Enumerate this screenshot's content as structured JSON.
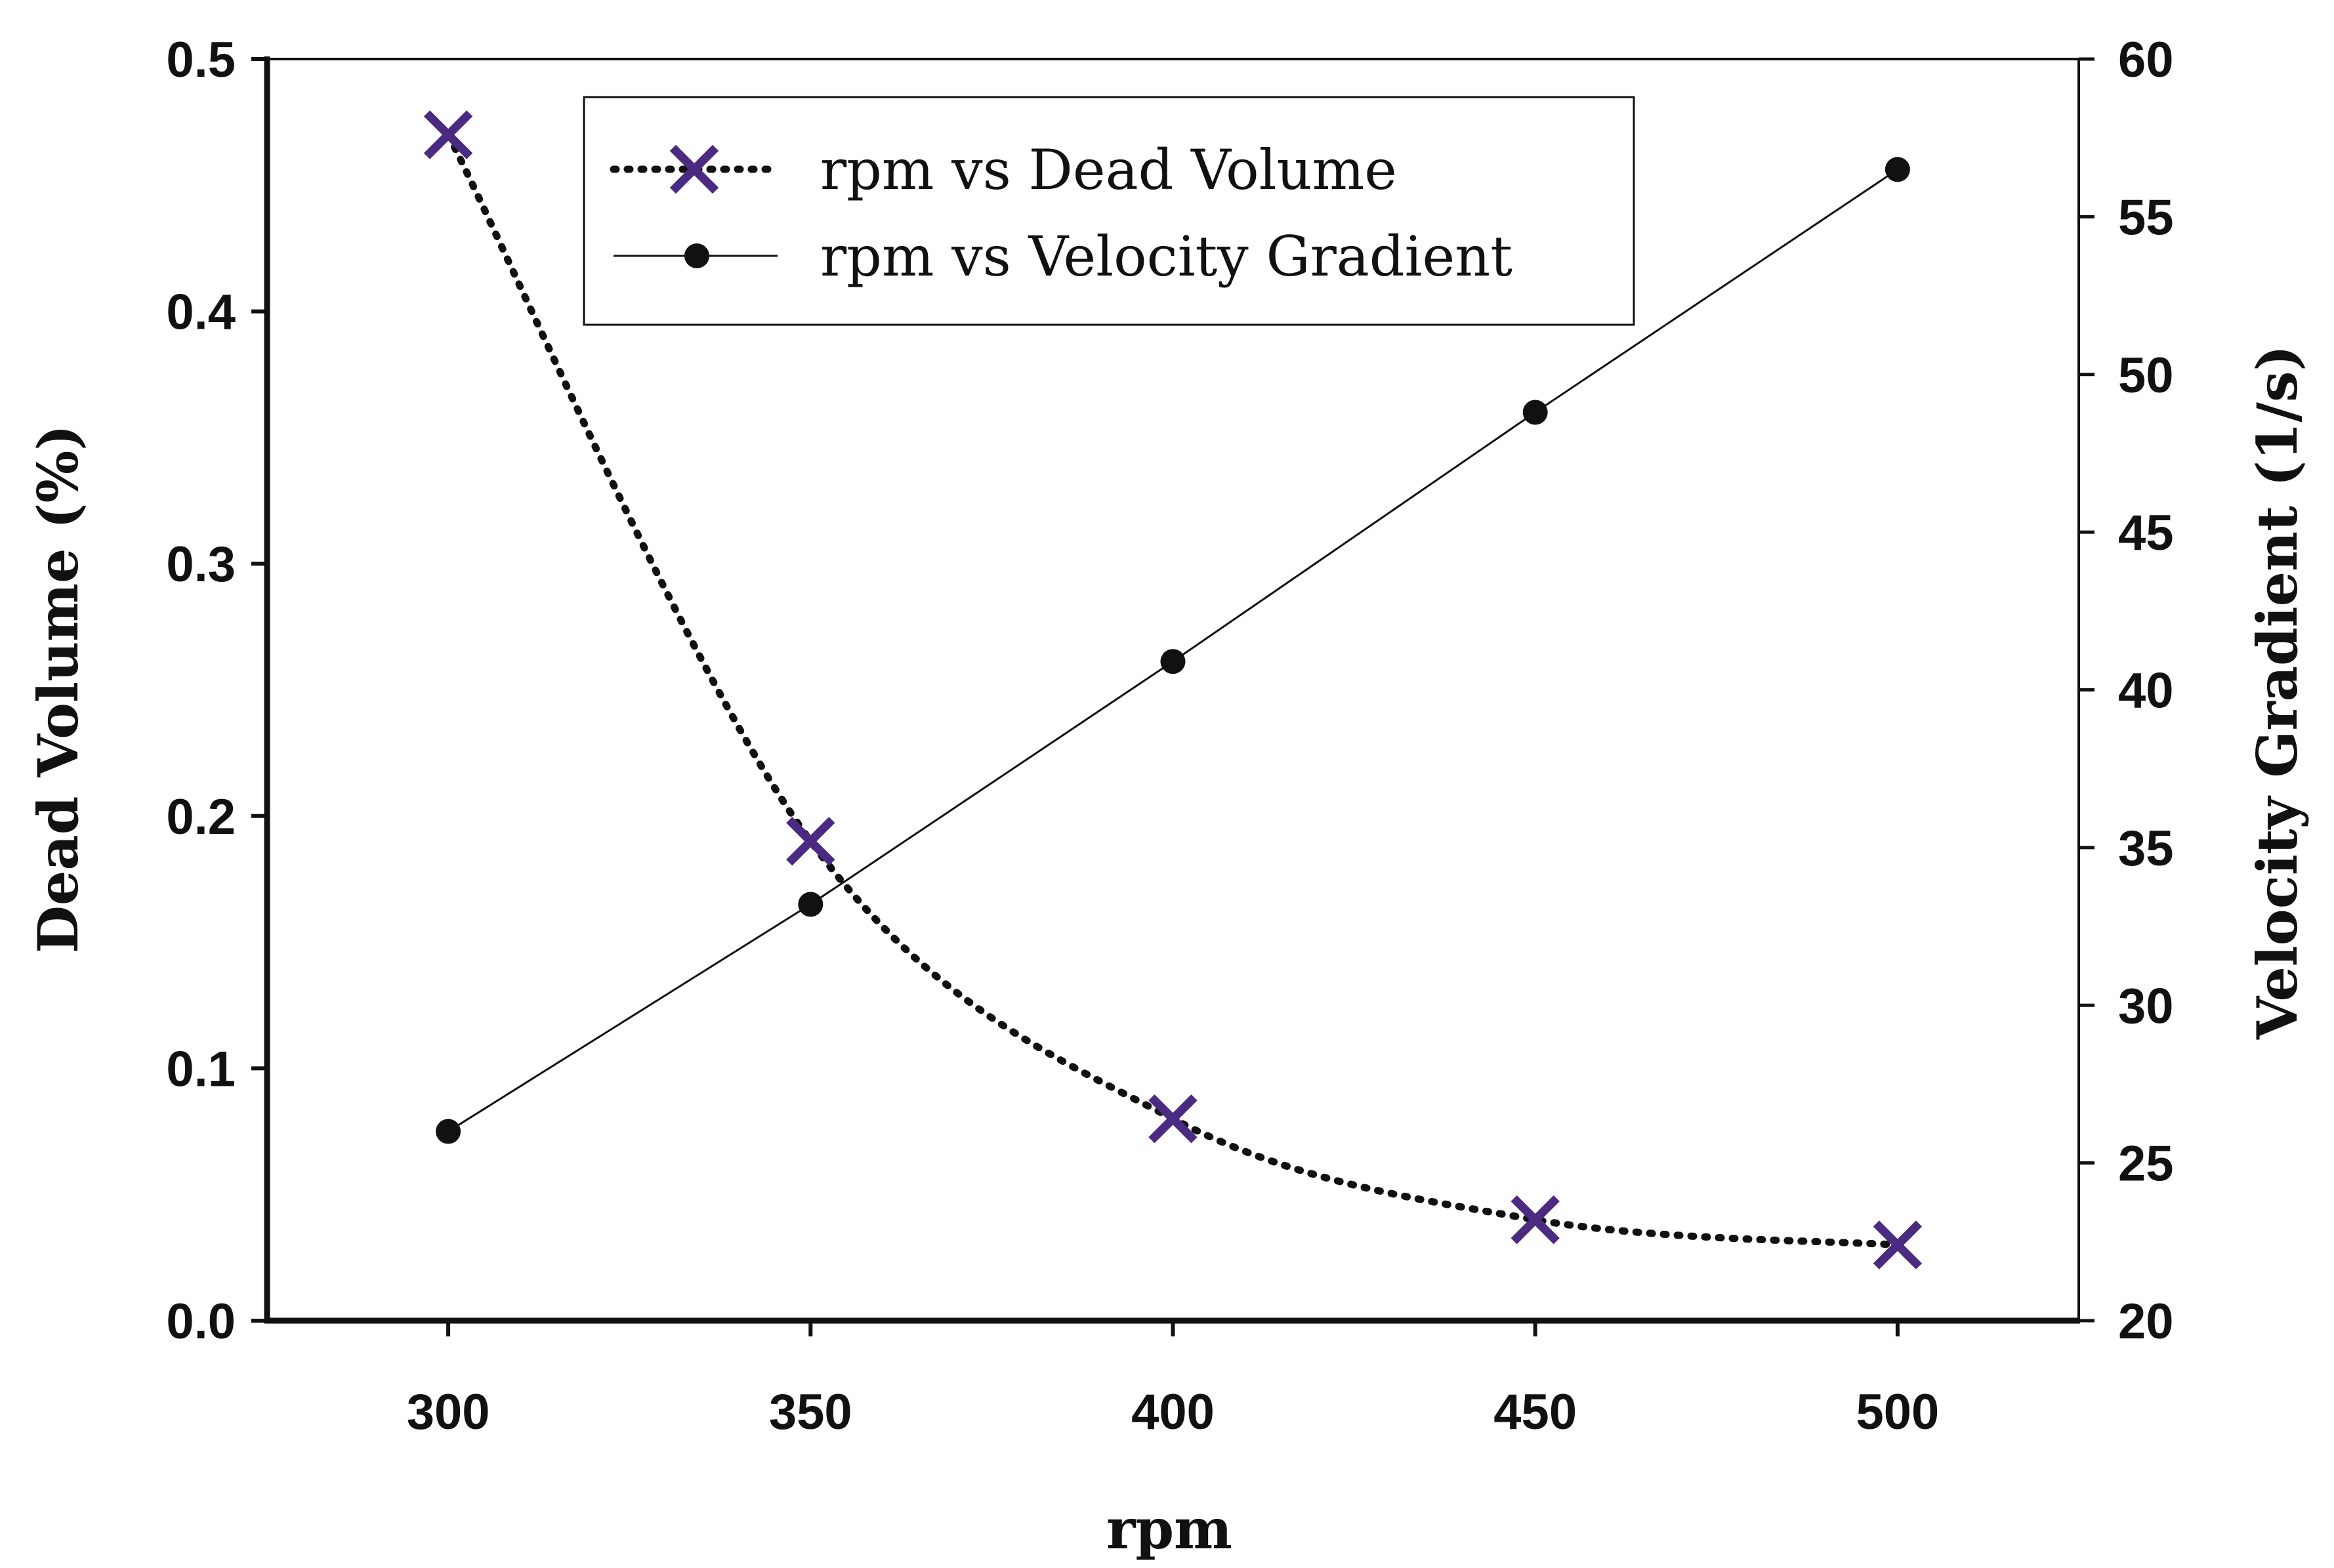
{
  "chart_data": {
    "type": "line",
    "title": "",
    "xlabel": "rpm",
    "ylabel_left": "Dead Volume (%)",
    "ylabel_right": "Velocity Gradient (1/s)",
    "xlim": [
      275,
      525
    ],
    "ylim_left": [
      0.0,
      0.5
    ],
    "ylim_right": [
      20,
      60
    ],
    "x_ticks": [
      "300",
      "350",
      "400",
      "450",
      "500"
    ],
    "y_left_ticks": [
      "0.0",
      "0.1",
      "0.2",
      "0.3",
      "0.4",
      "0.5"
    ],
    "y_right_ticks": [
      "20",
      "25",
      "30",
      "35",
      "40",
      "45",
      "50",
      "55",
      "60"
    ],
    "grid": false,
    "legend_position": "top-center",
    "series": [
      {
        "name": "rpm vs Dead Volume",
        "axis": "left",
        "marker": "x",
        "line_style": "dotted",
        "color": "#4b2a82",
        "line_color": "#111111",
        "x": [
          300,
          350,
          400,
          450,
          500
        ],
        "values": [
          0.47,
          0.19,
          0.08,
          0.04,
          0.03
        ]
      },
      {
        "name": "rpm vs Velocity Gradient",
        "axis": "right",
        "marker": "circle",
        "line_style": "solid",
        "color": "#111111",
        "line_color": "#111111",
        "x": [
          300,
          350,
          400,
          450,
          500
        ],
        "values": [
          26.0,
          33.2,
          40.9,
          48.8,
          56.5
        ]
      }
    ]
  }
}
